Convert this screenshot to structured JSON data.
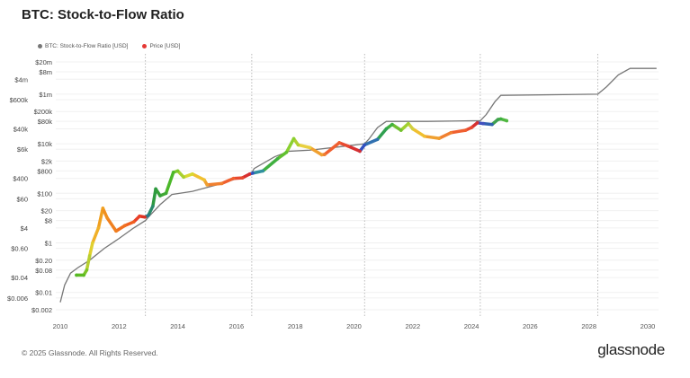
{
  "title": "BTC: Stock-to-Flow Ratio",
  "footer": "© 2025 Glassnode. All Rights Reserved.",
  "brand": "glassnode",
  "chart_data": {
    "type": "line",
    "title": "BTC: Stock-to-Flow Ratio",
    "yscale": "log",
    "ylim": [
      0.0016,
      40000000
    ],
    "xlim": [
      2009.95,
      2030.4
    ],
    "legend_position": "top-left",
    "legend": [
      {
        "name": "BTC: Stock-to-Flow Ratio [USD]",
        "color": "#777777"
      },
      {
        "name": "Price [USD]",
        "color": "#e53935"
      }
    ],
    "y_ticks": [
      {
        "v": 20000000,
        "label": "$20m"
      },
      {
        "v": 8000000,
        "label": "$8m"
      },
      {
        "v": 4000000,
        "label": "$4m"
      },
      {
        "v": 1000000,
        "label": "$1m"
      },
      {
        "v": 600000,
        "label": "$600k"
      },
      {
        "v": 200000,
        "label": "$200k"
      },
      {
        "v": 80000,
        "label": "$80k"
      },
      {
        "v": 40000,
        "label": "$40k"
      },
      {
        "v": 10000,
        "label": "$10k"
      },
      {
        "v": 6000,
        "label": "$6k"
      },
      {
        "v": 2000,
        "label": "$2k"
      },
      {
        "v": 800,
        "label": "$800"
      },
      {
        "v": 400,
        "label": "$400"
      },
      {
        "v": 100,
        "label": "$100"
      },
      {
        "v": 60,
        "label": "$60"
      },
      {
        "v": 20,
        "label": "$20"
      },
      {
        "v": 8,
        "label": "$8"
      },
      {
        "v": 4,
        "label": "$4"
      },
      {
        "v": 1,
        "label": "$1"
      },
      {
        "v": 0.6,
        "label": "$0.60"
      },
      {
        "v": 0.2,
        "label": "$0.20"
      },
      {
        "v": 0.08,
        "label": "$0.08"
      },
      {
        "v": 0.04,
        "label": "$0.04"
      },
      {
        "v": 0.01,
        "label": "$0.01"
      },
      {
        "v": 0.006,
        "label": "$0.006"
      },
      {
        "v": 0.002,
        "label": "$0.002"
      }
    ],
    "x_ticks": [
      {
        "v": 2010,
        "label": "2010"
      },
      {
        "v": 2012,
        "label": "2012"
      },
      {
        "v": 2014,
        "label": "2014"
      },
      {
        "v": 2016,
        "label": "2016"
      },
      {
        "v": 2018,
        "label": "2018"
      },
      {
        "v": 2020,
        "label": "2020"
      },
      {
        "v": 2022,
        "label": "2022"
      },
      {
        "v": 2024,
        "label": "2024"
      },
      {
        "v": 2026,
        "label": "2026"
      },
      {
        "v": 2028,
        "label": "2028"
      },
      {
        "v": 2030,
        "label": "2030"
      }
    ],
    "halvings": [
      2012.9,
      2016.52,
      2020.36,
      2024.3,
      2028.3
    ],
    "series": [
      {
        "name": "BTC: Stock-to-Flow Ratio [USD]",
        "color": "#777777",
        "points": [
          [
            2010.0,
            0.004
          ],
          [
            2010.15,
            0.02
          ],
          [
            2010.35,
            0.06
          ],
          [
            2010.6,
            0.1
          ],
          [
            2011.0,
            0.2
          ],
          [
            2011.5,
            0.6
          ],
          [
            2012.0,
            1.5
          ],
          [
            2012.5,
            4
          ],
          [
            2012.9,
            8
          ],
          [
            2013.0,
            11
          ],
          [
            2013.4,
            35
          ],
          [
            2013.8,
            90
          ],
          [
            2014.5,
            120
          ],
          [
            2015.5,
            250
          ],
          [
            2016.5,
            600
          ],
          [
            2016.6,
            1000
          ],
          [
            2017.3,
            3000
          ],
          [
            2017.8,
            5000
          ],
          [
            2018.5,
            5500
          ],
          [
            2019.5,
            7500
          ],
          [
            2020.36,
            10000
          ],
          [
            2020.5,
            15000
          ],
          [
            2020.8,
            45000
          ],
          [
            2021.1,
            80000
          ],
          [
            2022.5,
            80000
          ],
          [
            2024.3,
            85000
          ],
          [
            2024.5,
            150000
          ],
          [
            2024.8,
            500000
          ],
          [
            2025.0,
            900000
          ],
          [
            2028.3,
            1000000
          ],
          [
            2028.6,
            2000000
          ],
          [
            2029.0,
            6000000
          ],
          [
            2029.4,
            11000000
          ],
          [
            2030.3,
            11000000
          ]
        ]
      },
      {
        "name": "Price [USD]",
        "points": [
          [
            2010.55,
            0.05,
            "#55b825"
          ],
          [
            2010.8,
            0.05,
            "#5cbb22"
          ],
          [
            2010.9,
            0.08,
            "#7cc428"
          ],
          [
            2011.0,
            0.3,
            "#b8cf30"
          ],
          [
            2011.1,
            1,
            "#e0d030"
          ],
          [
            2011.3,
            4,
            "#f0b028"
          ],
          [
            2011.45,
            25,
            "#f0a020"
          ],
          [
            2011.6,
            10,
            "#f09020"
          ],
          [
            2011.9,
            3,
            "#f08020"
          ],
          [
            2012.2,
            5,
            "#f07020"
          ],
          [
            2012.5,
            7,
            "#f06020"
          ],
          [
            2012.7,
            12,
            "#e84028"
          ],
          [
            2012.88,
            11,
            "#e03020"
          ],
          [
            2013.0,
            13,
            "#2a7a8a"
          ],
          [
            2013.15,
            30,
            "#2a8a6a"
          ],
          [
            2013.25,
            150,
            "#2e9a40"
          ],
          [
            2013.4,
            80,
            "#35a03a"
          ],
          [
            2013.6,
            100,
            "#40a835"
          ],
          [
            2013.85,
            700,
            "#4cb82a"
          ],
          [
            2014.0,
            800,
            "#7ac82a"
          ],
          [
            2014.2,
            450,
            "#a8d030"
          ],
          [
            2014.5,
            600,
            "#d8d830"
          ],
          [
            2014.9,
            350,
            "#f0c030"
          ],
          [
            2015.0,
            220,
            "#f0a030"
          ],
          [
            2015.5,
            250,
            "#f08030"
          ],
          [
            2015.9,
            400,
            "#f06030"
          ],
          [
            2016.2,
            420,
            "#e84a30"
          ],
          [
            2016.45,
            600,
            "#d83030"
          ],
          [
            2016.55,
            650,
            "#3050c0"
          ],
          [
            2016.9,
            800,
            "#3090a0"
          ],
          [
            2017.4,
            2500,
            "#40b040"
          ],
          [
            2017.7,
            4500,
            "#60c030"
          ],
          [
            2017.95,
            16000,
            "#8ad030"
          ],
          [
            2018.1,
            9000,
            "#b0d030"
          ],
          [
            2018.5,
            7000,
            "#e8d040"
          ],
          [
            2018.9,
            3600,
            "#f0a030"
          ],
          [
            2019.0,
            3700,
            "#f08030"
          ],
          [
            2019.5,
            11000,
            "#f06030"
          ],
          [
            2019.8,
            8000,
            "#e84a30"
          ],
          [
            2020.2,
            5000,
            "#d83030"
          ],
          [
            2020.36,
            9000,
            "#3050c0"
          ],
          [
            2020.8,
            15000,
            "#3070b0"
          ],
          [
            2021.1,
            40000,
            "#30a050"
          ],
          [
            2021.3,
            60000,
            "#40b040"
          ],
          [
            2021.6,
            35000,
            "#70c030"
          ],
          [
            2021.85,
            65000,
            "#a0d030"
          ],
          [
            2022.0,
            40000,
            "#d0d040"
          ],
          [
            2022.4,
            20000,
            "#f0c030"
          ],
          [
            2022.9,
            16500,
            "#f0a030"
          ],
          [
            2023.3,
            28000,
            "#f08030"
          ],
          [
            2023.8,
            35000,
            "#f06030"
          ],
          [
            2024.0,
            45000,
            "#e84a30"
          ],
          [
            2024.2,
            70000,
            "#d83030"
          ],
          [
            2024.4,
            65000,
            "#4050c0"
          ],
          [
            2024.7,
            60000,
            "#3060b0"
          ],
          [
            2024.9,
            95000,
            "#40a050"
          ],
          [
            2025.0,
            100000,
            "#40b040"
          ],
          [
            2025.2,
            85000,
            "#50b840"
          ]
        ]
      }
    ]
  }
}
